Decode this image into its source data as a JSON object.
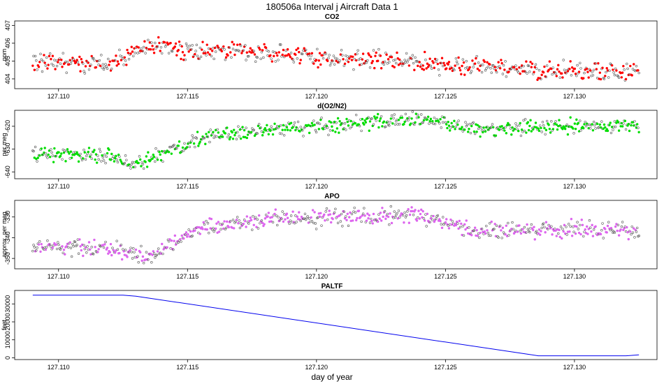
{
  "figure": {
    "title": "180506a   Interval j Aircraft Data 1",
    "xlabel": "day of year"
  },
  "chart_data": [
    {
      "id": "co2",
      "type": "scatter",
      "title": "CO2",
      "ylabel": "ppm",
      "color": "#ff0000",
      "xlim": [
        127.1083,
        127.1332
      ],
      "ylim": [
        403.45,
        407.25
      ],
      "xticks": [
        "127.110",
        "127.115",
        "127.120",
        "127.125",
        "127.130"
      ],
      "yticks": [
        "404",
        "405",
        "406",
        "407"
      ],
      "x_start": 127.109,
      "x_end": 127.1325,
      "trend_x": [
        127.109,
        127.112,
        127.1135,
        127.115,
        127.117,
        127.12,
        127.125,
        127.13,
        127.1325
      ],
      "trend_y": [
        405.0,
        404.8,
        405.9,
        405.6,
        405.6,
        405.2,
        404.8,
        404.4,
        404.4
      ],
      "noise": 0.35,
      "n_points": 700
    },
    {
      "id": "o2n2",
      "type": "scatter",
      "title": "d(O2/N2)",
      "ylabel": "per meg",
      "color": "#00dd00",
      "xlim": [
        127.1083,
        127.1332
      ],
      "ylim": [
        -643,
        -613
      ],
      "xticks": [
        "127.110",
        "127.115",
        "127.120",
        "127.125",
        "127.130"
      ],
      "yticks": [
        "-640",
        "-630",
        "-620"
      ],
      "x_start": 127.109,
      "x_end": 127.1325,
      "trend_x": [
        127.109,
        127.112,
        127.113,
        127.1145,
        127.116,
        127.12,
        127.124,
        127.126,
        127.13,
        127.1325
      ],
      "trend_y": [
        -632,
        -633,
        -637,
        -630,
        -624,
        -620,
        -617,
        -621,
        -620,
        -620
      ],
      "noise": 2.2,
      "n_points": 700
    },
    {
      "id": "apo",
      "type": "scatter",
      "title": "APO",
      "ylabel": "approx. per meg",
      "color": "#dd66ee",
      "xlim": [
        127.1083,
        127.1332
      ],
      "ylim": [
        -355,
        -322
      ],
      "xticks": [
        "127.110",
        "127.115",
        "127.120",
        "127.125",
        "127.130"
      ],
      "yticks": [
        "-350",
        "-340",
        "-330"
      ],
      "x_start": 127.109,
      "x_end": 127.1325,
      "trend_x": [
        127.109,
        127.1125,
        127.1135,
        127.1155,
        127.118,
        127.121,
        127.124,
        127.126,
        127.13,
        127.1325
      ],
      "trend_y": [
        -344,
        -346,
        -349,
        -335,
        -331,
        -330,
        -329,
        -336,
        -336,
        -337
      ],
      "noise": 2.8,
      "n_points": 700
    },
    {
      "id": "paltf",
      "type": "line",
      "title": "PALTF",
      "ylabel": "feet",
      "color": "#0000ee",
      "xlim": [
        127.1083,
        127.1332
      ],
      "ylim": [
        -1000,
        37500
      ],
      "xticks": [
        "127.110",
        "127.115",
        "127.120",
        "127.125",
        "127.130"
      ],
      "yticks": [
        "0",
        "10000",
        "20000",
        "30000"
      ],
      "x": [
        127.109,
        127.1125,
        127.113,
        127.1286,
        127.132,
        127.1325
      ],
      "y": [
        34900,
        34900,
        34300,
        1100,
        1100,
        1600
      ]
    }
  ]
}
